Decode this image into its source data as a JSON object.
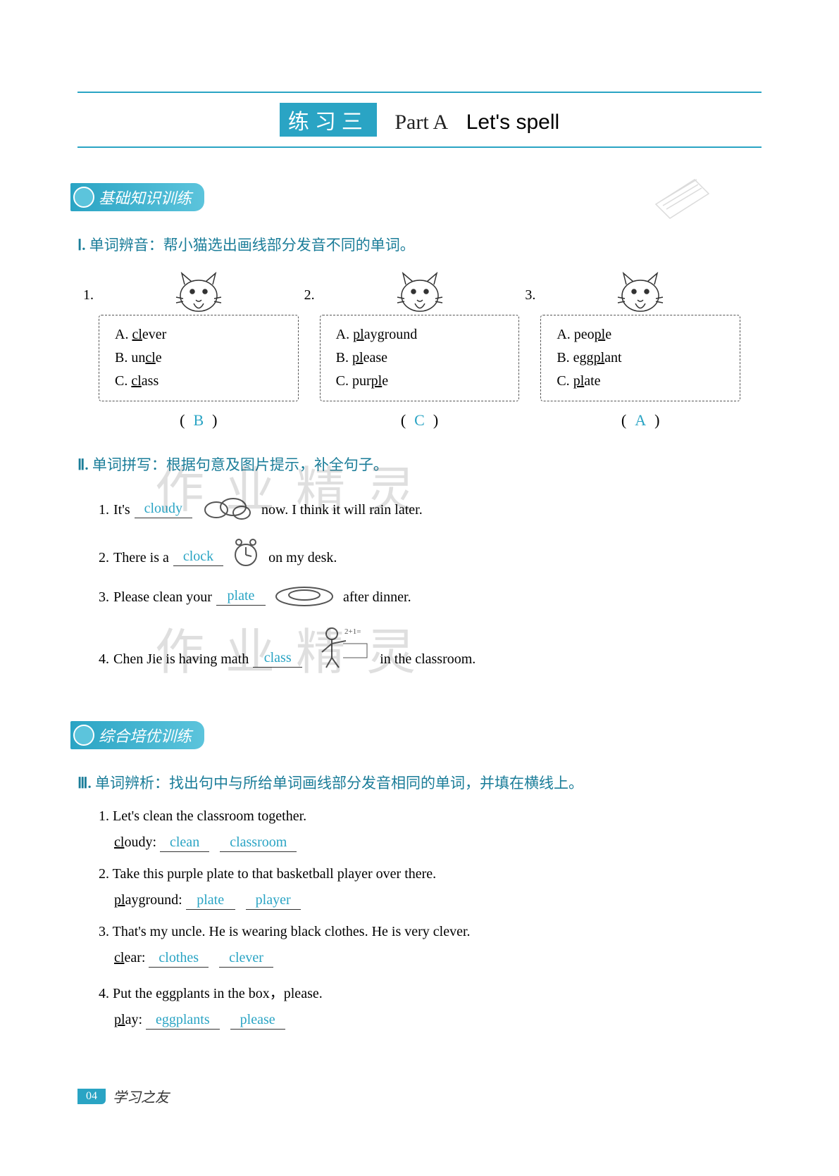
{
  "header": {
    "badge": "练习三",
    "part": "Part  A",
    "title": "Let's spell"
  },
  "section1": {
    "badge": "基础知识训练",
    "instruction_roman": "Ⅰ.",
    "instruction": "单词辨音：帮小猫选出画线部分发音不同的单词。",
    "questions": [
      {
        "num": "1.",
        "opts": [
          {
            "label": "A.",
            "pre": "",
            "ul": "cl",
            "post": "ever"
          },
          {
            "label": "B.",
            "pre": "un",
            "ul": "cl",
            "post": "e"
          },
          {
            "label": "C.",
            "pre": "",
            "ul": "cl",
            "post": "ass"
          }
        ],
        "answer": "B"
      },
      {
        "num": "2.",
        "opts": [
          {
            "label": "A.",
            "pre": "",
            "ul": "pl",
            "post": "ayground"
          },
          {
            "label": "B.",
            "pre": "",
            "ul": "pl",
            "post": "ease"
          },
          {
            "label": "C.",
            "pre": "pur",
            "ul": "pl",
            "post": "e"
          }
        ],
        "answer": "C"
      },
      {
        "num": "3.",
        "opts": [
          {
            "label": "A.",
            "pre": "peo",
            "ul": "pl",
            "post": "e"
          },
          {
            "label": "B.",
            "pre": "egg",
            "ul": "pl",
            "post": "ant"
          },
          {
            "label": "C.",
            "pre": "",
            "ul": "pl",
            "post": "ate"
          }
        ],
        "answer": "A"
      }
    ]
  },
  "section2": {
    "instruction_roman": "Ⅱ.",
    "instruction": "单词拼写：根据句意及图片提示，补全句子。",
    "sentences": [
      {
        "num": "1.",
        "before": "It's",
        "fill": "cloudy",
        "icon": "cloud",
        "after": "now. I think it will rain later."
      },
      {
        "num": "2.",
        "before": "There is a",
        "fill": "clock",
        "icon": "clock",
        "after": "on my desk."
      },
      {
        "num": "3.",
        "before": "Please clean your",
        "fill": "plate",
        "icon": "plate",
        "after": "after dinner."
      },
      {
        "num": "4.",
        "before": "Chen Jie is having math",
        "fill": "class",
        "icon": "teacher",
        "after": "in the classroom."
      }
    ]
  },
  "section3": {
    "badge": "综合培优训练",
    "instruction_roman": "Ⅲ.",
    "instruction": "单词辨析：找出句中与所给单词画线部分发音相同的单词，并填在横线上。",
    "items": [
      {
        "num": "1.",
        "sentence": "Let's clean the classroom together.",
        "given_pre": "",
        "given_ul": "cl",
        "given_post": "oudy:",
        "fill1": "clean",
        "fill2": "classroom"
      },
      {
        "num": "2.",
        "sentence": "Take this purple plate to that basketball player over there.",
        "given_pre": "",
        "given_ul": "pl",
        "given_post": "ayground:",
        "fill1": "plate",
        "fill2": "player"
      },
      {
        "num": "3.",
        "sentence": "That's my uncle. He is wearing black clothes. He is very clever.",
        "given_pre": "",
        "given_ul": "cl",
        "given_post": "ear:",
        "fill1": "clothes",
        "fill2": "clever"
      },
      {
        "num": "4.",
        "sentence": "Put the eggplants in the box，please.",
        "given_pre": "",
        "given_ul": "pl",
        "given_post": "ay:",
        "fill1": "eggplants",
        "fill2": "please"
      }
    ]
  },
  "footer": {
    "page": "04",
    "text": "学习之友"
  },
  "watermarks": {
    "w1": "作业精灵",
    "w2": "作业精灵"
  },
  "colors": {
    "accent": "#2aa4c4",
    "text_blue": "#1b7d99"
  }
}
